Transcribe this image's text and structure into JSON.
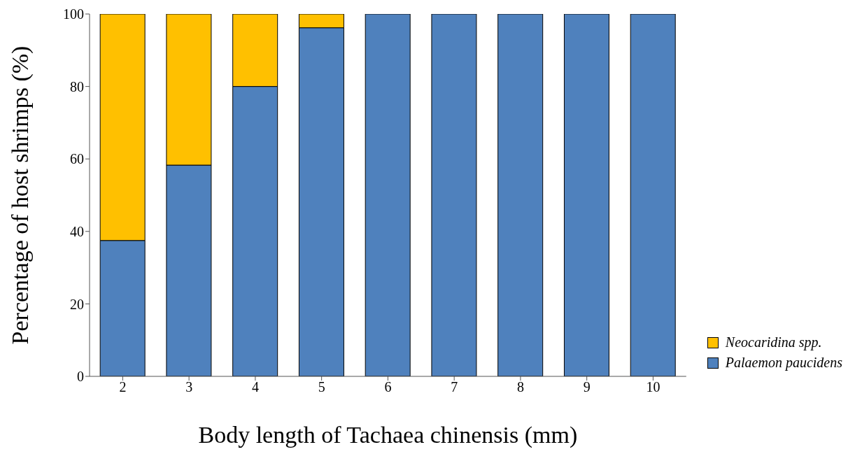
{
  "chart_data": {
    "type": "bar",
    "stacked": true,
    "xlabel": "Body length of Tachaea chinensis (mm)",
    "ylabel": "Percentage of host shrimps (%)",
    "categories": [
      "2",
      "3",
      "4",
      "5",
      "6",
      "7",
      "8",
      "9",
      "10"
    ],
    "series": [
      {
        "name": "Palaemon paucidens",
        "color": "#4f81bd",
        "values": [
          37.5,
          58.3,
          80,
          96.2,
          100,
          100,
          100,
          100,
          100
        ]
      },
      {
        "name": "Neocaridina spp.",
        "color": "#ffc000",
        "values": [
          62.5,
          41.7,
          20,
          3.8,
          0,
          0,
          0,
          0,
          0
        ]
      }
    ],
    "ylim": [
      0,
      100
    ],
    "yticks": [
      0,
      20,
      40,
      60,
      80,
      100
    ],
    "grid": false,
    "legend": "right"
  }
}
